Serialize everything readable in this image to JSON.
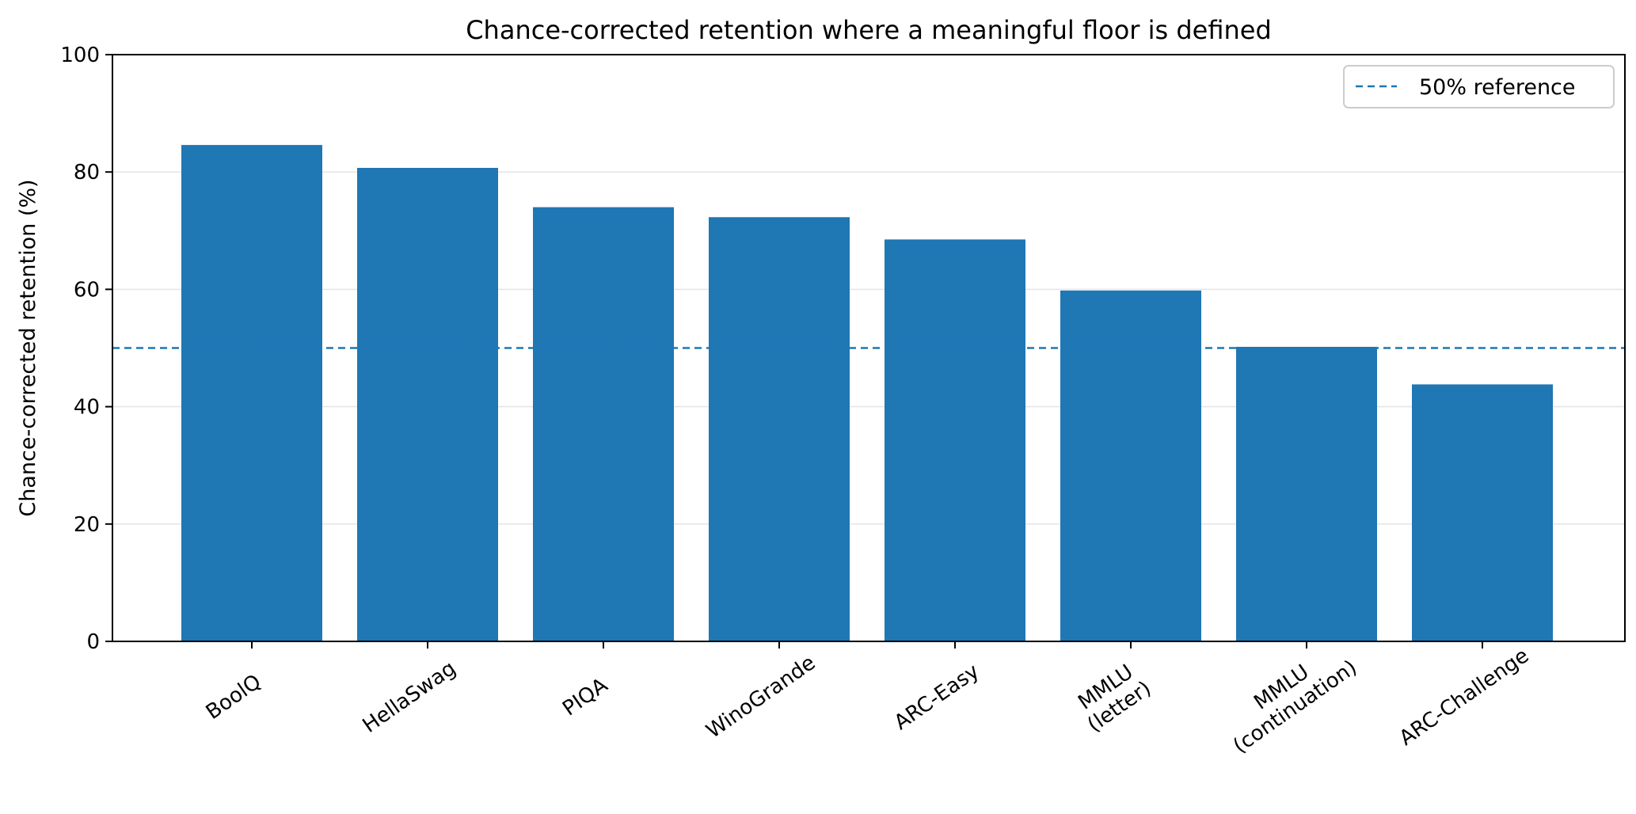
{
  "chart_data": {
    "type": "bar",
    "title": "Chance-corrected retention where a meaningful floor is defined",
    "xlabel": "",
    "ylabel": "Chance-corrected retention (%)",
    "ylim": [
      0,
      100
    ],
    "yticks": [
      0,
      20,
      40,
      60,
      80,
      100
    ],
    "grid": "horizontal",
    "categories": [
      [
        "BoolQ"
      ],
      [
        "HellaSwag"
      ],
      [
        "PIQA"
      ],
      [
        "WinoGrande"
      ],
      [
        "ARC-Easy"
      ],
      [
        "MMLU",
        "(letter)"
      ],
      [
        "MMLU",
        "(continuation)"
      ],
      [
        "ARC-Challenge"
      ]
    ],
    "values": [
      84.6,
      80.7,
      74.0,
      72.3,
      68.5,
      59.8,
      50.2,
      43.8
    ],
    "bar_color": "#1f77b4",
    "reference_line": {
      "value": 50,
      "label": "50% reference",
      "style": "dashed",
      "color": "#1f77b4"
    },
    "legend_position": "top-right"
  }
}
